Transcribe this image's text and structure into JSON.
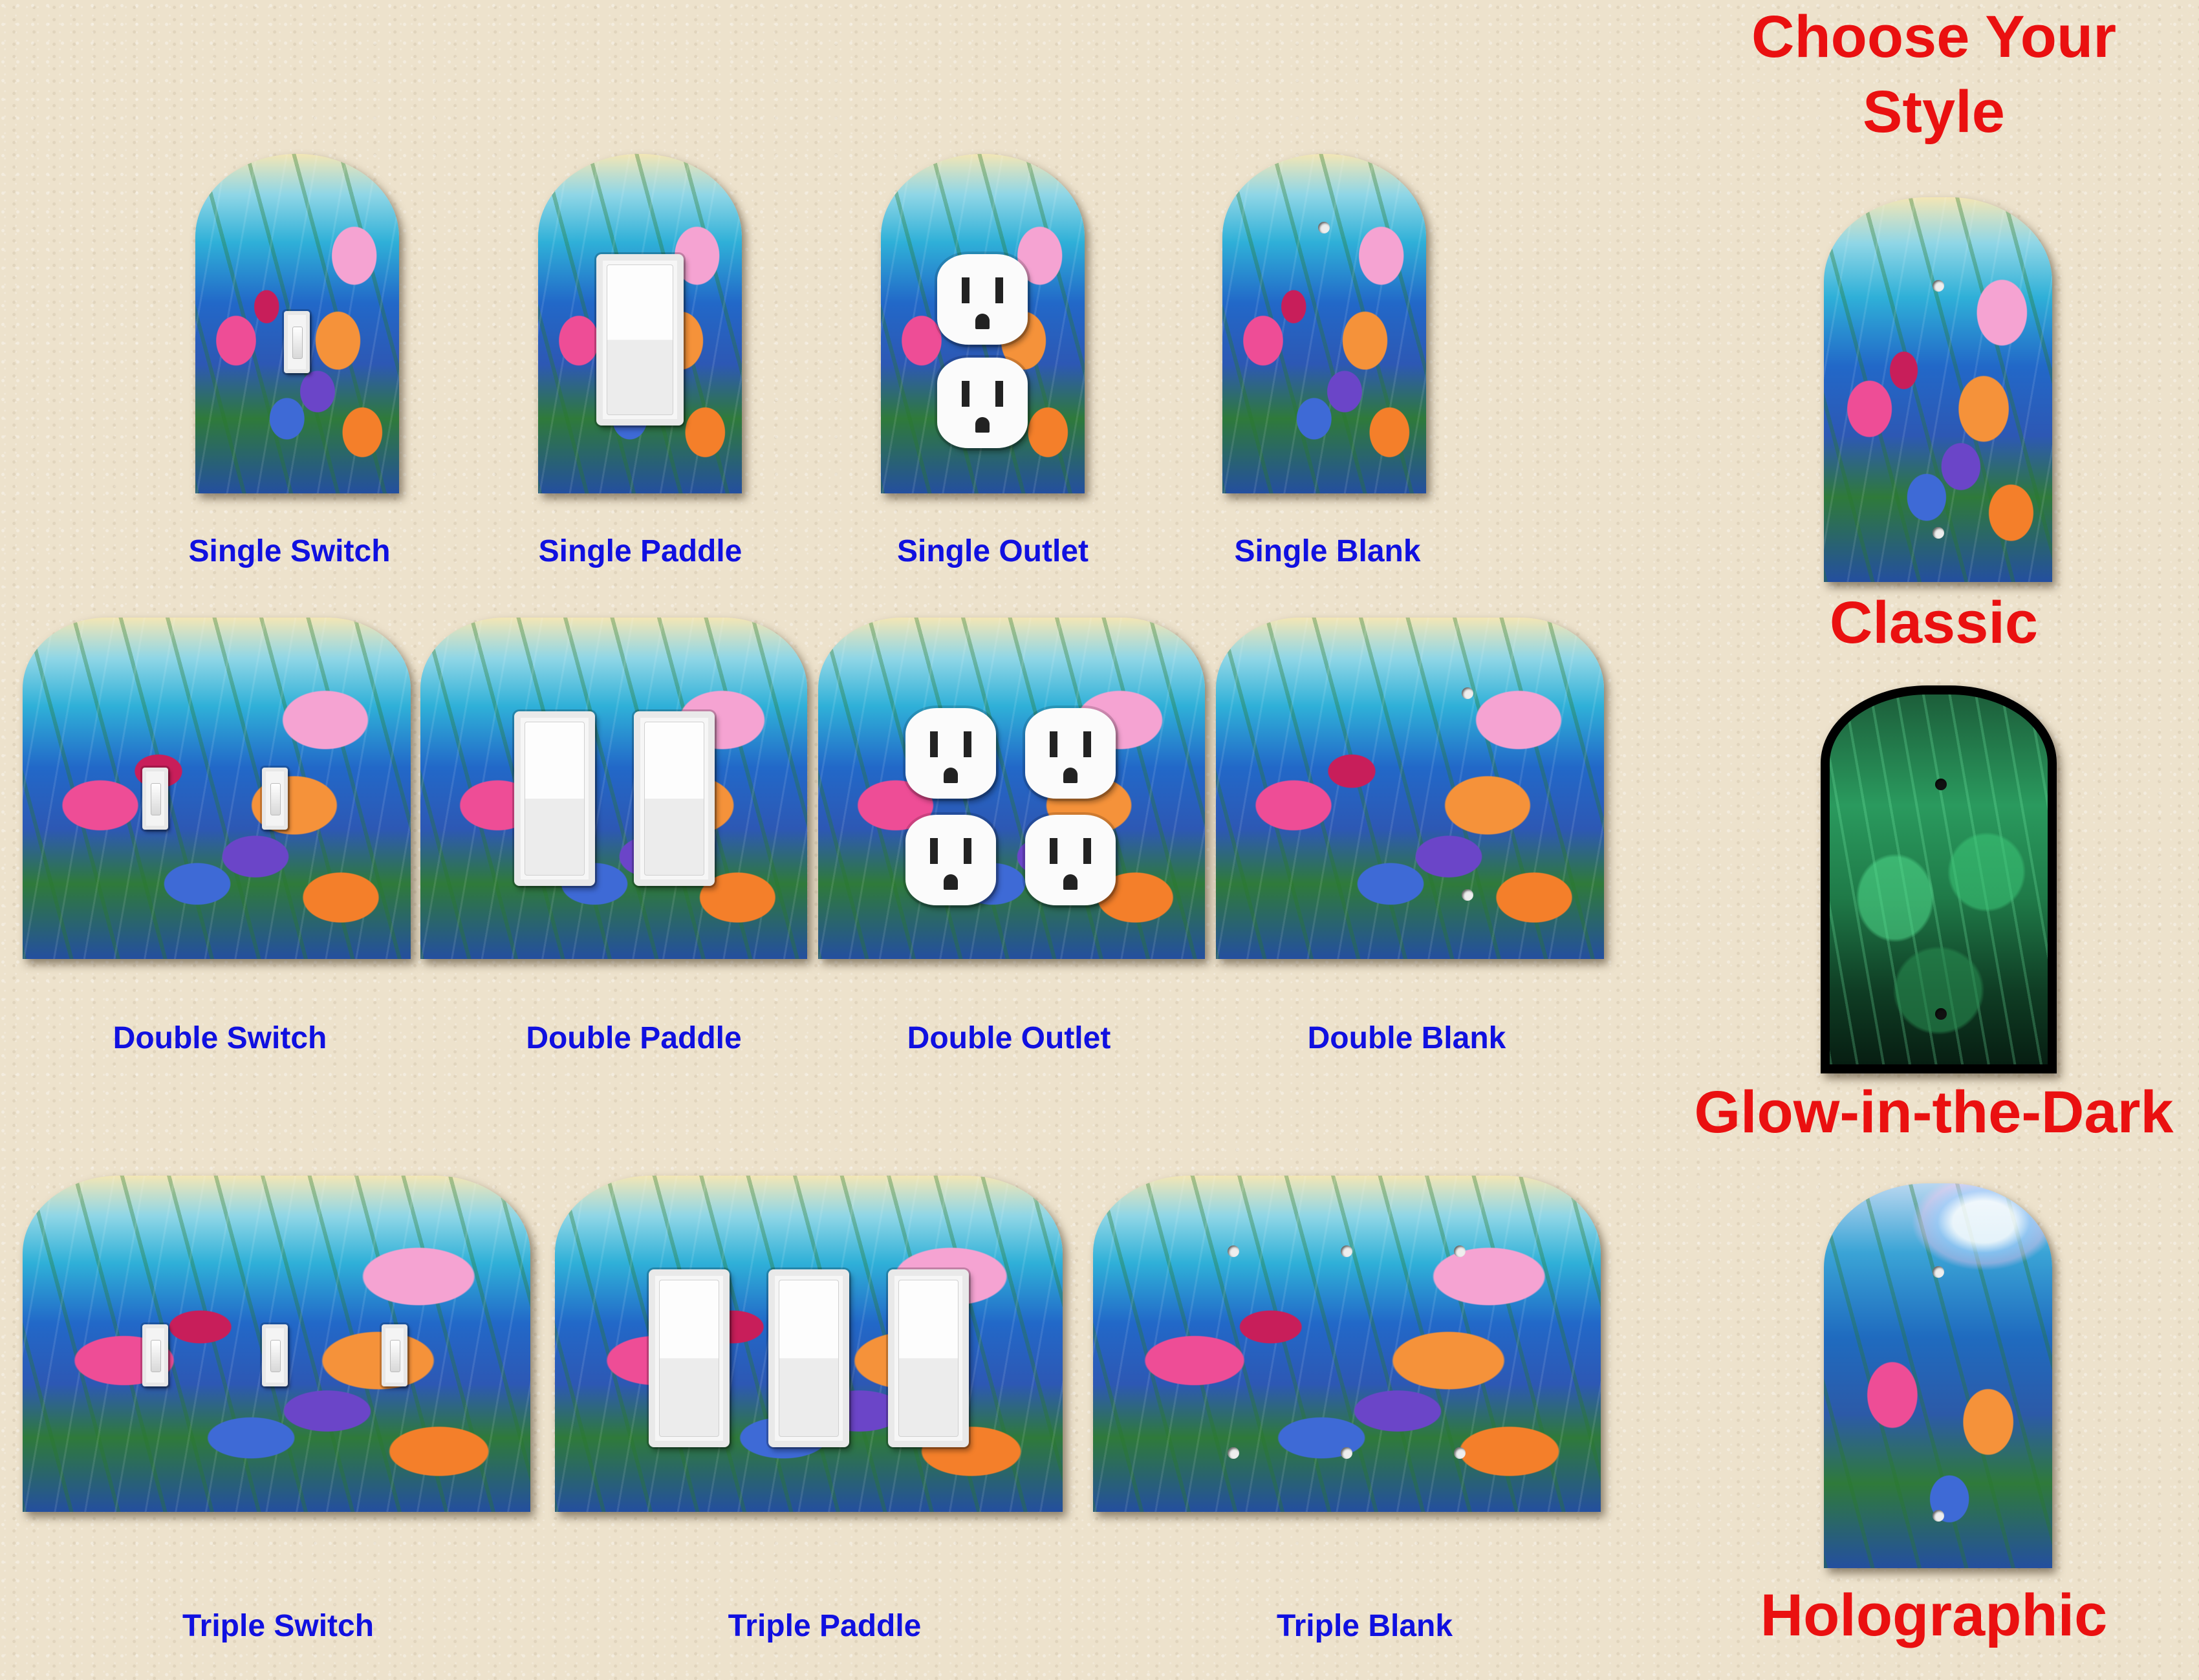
{
  "header": {
    "line1": "Choose Your",
    "line2": "Style"
  },
  "plates": {
    "single_switch": "Single Switch",
    "single_paddle": "Single Paddle",
    "single_outlet": "Single Outlet",
    "single_blank": "Single Blank",
    "double_switch": "Double Switch",
    "double_paddle": "Double Paddle",
    "double_outlet": "Double Outlet",
    "double_blank": "Double Blank",
    "triple_switch": "Triple Switch",
    "triple_paddle": "Triple Paddle",
    "triple_blank": "Triple Blank"
  },
  "styles": {
    "classic": "Classic",
    "glow": "Glow-in-the-Dark",
    "holographic": "Holographic"
  },
  "colors": {
    "label_blue": "#1010e0",
    "style_red": "#ea1010",
    "wall": "#ede2cc"
  }
}
